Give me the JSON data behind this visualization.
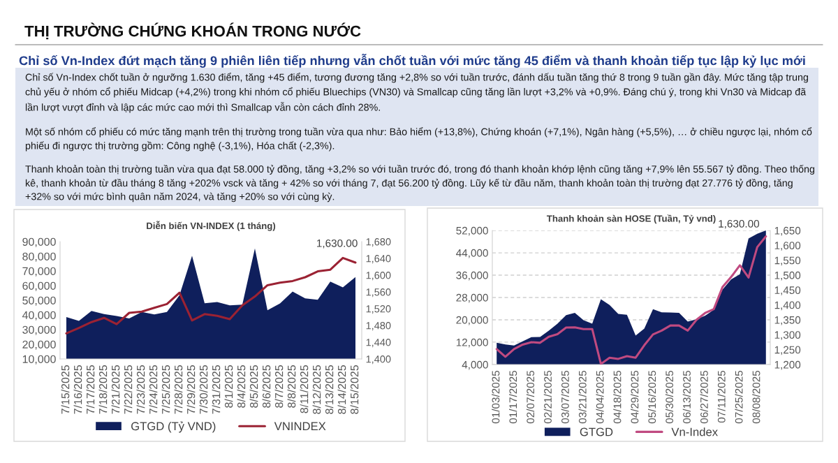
{
  "chart_data": [
    {
      "type": "other",
      "title": "THỊ TRƯỜNG CHỨNG KHOÁN TRONG NƯỚC",
      "subtitle": "Chỉ số Vn-Index đứt mạch tăng 9 phiên liên tiếp nhưng vẫn chốt tuần với mức tăng 45 điểm và thanh khoản tiếp tục lập kỷ lục mới",
      "annotations": [
        "Chỉ số Vn-Index chốt tuần ở ngưỡng 1.630 điểm, tăng +45 điểm, tương đương tăng +2,8% so với tuần trước, đánh dấu tuần tăng thứ 8 trong 9 tuần gần đây. Mức tăng tập trung chủ yếu ở nhóm cổ phiếu Midcap (+4,2%) trong khi nhóm cổ phiếu Bluechips (VN30) và Smallcap cũng tăng lần lượt +3,2% và +0,9%. Đáng chú ý, trong khi Vn30 và Midcap đã lần lượt vượt đỉnh và lập các mức cao mới thì Smallcap vẫn còn cách đỉnh 28%.",
        "Một số nhóm cổ phiếu có mức tăng mạnh trên thị trường trong tuần vừa qua như: Bảo hiểm (+13,8%), Chứng khoán (+7,1%), Ngân hàng (+5,5%), … ở chiều ngược lại, nhóm cổ phiếu đi ngược thị trường gồm: Công nghệ (-3,1%), Hóa chất (-2,3%).",
        "Thanh khoản toàn thị trường tuần vừa qua đạt 58.000 tỷ đồng, tăng +3,2% so với tuần trước đó, trong đó thanh khoản khớp lệnh cũng tăng +7,9% lên 55.567 tỷ đồng. Theo thống kê, thanh khoản từ đầu tháng 8 tăng +202% vsck và tăng + 42% so với tháng 7, đạt 56.200 tỷ đồng. Lũy kế từ đầu năm, thanh khoản toàn thị trường đạt 27.776 tỷ đồng, tăng +32% so với mức bình quân năm 2024, và tăng +20% so với cùng kỳ."
      ]
    },
    {
      "type": "area",
      "title": "Diễn biến VN-INDEX (1 tháng)",
      "categories": [
        "7/15/2025",
        "7/16/2025",
        "7/17/2025",
        "7/18/2025",
        "7/21/2025",
        "7/22/2025",
        "7/23/2025",
        "7/24/2025",
        "7/25/2025",
        "7/28/2025",
        "7/29/2025",
        "7/30/2025",
        "7/31/2025",
        "8/1/2025",
        "8/4/2025",
        "8/5/2025",
        "8/6/2025",
        "8/7/2025",
        "8/8/2025",
        "8/11/2025",
        "8/12/2025",
        "8/13/2025",
        "8/14/2025",
        "8/15/2025"
      ],
      "series": [
        {
          "name": "GTGD (Tỷ VND)",
          "color": "#0f1f5c",
          "values": [
            38600,
            36000,
            42700,
            40600,
            39300,
            37600,
            42000,
            40300,
            42000,
            53400,
            80300,
            48000,
            48800,
            46600,
            47000,
            85400,
            43200,
            47800,
            55900,
            51300,
            50300,
            62700,
            58800,
            65800
          ]
        },
        {
          "name": "VNINDEX",
          "type": "line",
          "axis": "y2",
          "color": "#9b2233",
          "values": [
            1461,
            1474,
            1488,
            1498,
            1483,
            1510,
            1513,
            1522,
            1531,
            1558,
            1492,
            1507,
            1503,
            1495,
            1528,
            1549,
            1576,
            1582,
            1586,
            1595,
            1609,
            1613,
            1641,
            1630
          ],
          "value_labels": [
            null,
            null,
            null,
            null,
            null,
            null,
            null,
            null,
            null,
            null,
            null,
            null,
            null,
            null,
            null,
            null,
            null,
            null,
            null,
            null,
            null,
            null,
            null,
            "1,630.00"
          ]
        }
      ],
      "ylim": [
        10000,
        90000
      ],
      "yticks": [
        {
          "value": 10000,
          "label": "10,000"
        },
        {
          "value": 20000,
          "label": "20,000"
        },
        {
          "value": 30000,
          "label": "30,000"
        },
        {
          "value": 40000,
          "label": "40,000"
        },
        {
          "value": 50000,
          "label": "50,000"
        },
        {
          "value": 60000,
          "label": "60,000"
        },
        {
          "value": 70000,
          "label": "70,000"
        },
        {
          "value": 80000,
          "label": "80,000"
        },
        {
          "value": 90000,
          "label": "90,000"
        }
      ],
      "y2lim": [
        1400,
        1680
      ],
      "y2ticks": [
        {
          "value": 1400,
          "label": "1,400"
        },
        {
          "value": 1440,
          "label": "1,440"
        },
        {
          "value": 1480,
          "label": "1,480"
        },
        {
          "value": 1520,
          "label": "1,520"
        },
        {
          "value": 1560,
          "label": "1,560"
        },
        {
          "value": 1600,
          "label": "1,600"
        },
        {
          "value": 1640,
          "label": "1,640"
        },
        {
          "value": 1680,
          "label": "1,680"
        }
      ],
      "legend": "bottom"
    },
    {
      "type": "area",
      "title": "Thanh khoản sàn HOSE (Tuần, Tỷ vnd)",
      "categories": [
        "01/03/2025",
        null,
        "01/17/2025",
        null,
        "02/07/2025",
        null,
        "02/21/2025",
        null,
        "03/07/2025",
        null,
        "03/21/2025",
        null,
        "04/04/2025",
        null,
        "04/18/2025",
        null,
        "04/29/2025",
        null,
        "05/16/2025",
        null,
        "05/30/2025",
        null,
        "06/13/2025",
        null,
        "06/27/2025",
        null,
        "07/11/2025",
        null,
        "07/25/2025",
        null,
        "08/08/2025",
        null
      ],
      "series": [
        {
          "name": "GTGD",
          "color": "#0f1f5c",
          "values": [
            11800,
            11200,
            10800,
            12300,
            13800,
            13900,
            16100,
            18600,
            21700,
            22500,
            19900,
            18600,
            27400,
            25300,
            22100,
            21800,
            14400,
            16900,
            23800,
            22700,
            22600,
            22500,
            19400,
            20200,
            21500,
            23600,
            30800,
            34500,
            36300,
            49100,
            50800,
            52000
          ]
        },
        {
          "name": "Vn-Index",
          "type": "line",
          "axis": "y2",
          "color": "#c04a80",
          "values": [
            1252,
            1226,
            1252,
            1267,
            1275,
            1273,
            1293,
            1302,
            1324,
            1325,
            1319,
            1319,
            1202,
            1223,
            1219,
            1228,
            1223,
            1265,
            1301,
            1314,
            1331,
            1331,
            1314,
            1350,
            1373,
            1386,
            1460,
            1494,
            1533,
            1492,
            1594,
            1630
          ],
          "value_labels": [
            null,
            null,
            null,
            null,
            null,
            null,
            null,
            null,
            null,
            null,
            null,
            null,
            null,
            null,
            null,
            null,
            null,
            null,
            null,
            null,
            null,
            null,
            null,
            null,
            null,
            null,
            null,
            null,
            null,
            null,
            null,
            "1,630.00"
          ]
        }
      ],
      "ylim": [
        4000,
        52000
      ],
      "yticks": [
        {
          "value": 4000,
          "label": "4,000"
        },
        {
          "value": 12000,
          "label": "12,000"
        },
        {
          "value": 20000,
          "label": "20,000"
        },
        {
          "value": 28000,
          "label": "28,000"
        },
        {
          "value": 36000,
          "label": "36,000"
        },
        {
          "value": 44000,
          "label": "44,000"
        },
        {
          "value": 52000,
          "label": "52,000"
        }
      ],
      "y2lim": [
        1200,
        1650
      ],
      "y2ticks": [
        {
          "value": 1200,
          "label": "1,200"
        },
        {
          "value": 1250,
          "label": "1,250"
        },
        {
          "value": 1300,
          "label": "1,300"
        },
        {
          "value": 1350,
          "label": "1,350"
        },
        {
          "value": 1400,
          "label": "1,400"
        },
        {
          "value": 1450,
          "label": "1,450"
        },
        {
          "value": 1500,
          "label": "1,500"
        },
        {
          "value": 1550,
          "label": "1,550"
        },
        {
          "value": 1600,
          "label": "1,600"
        },
        {
          "value": 1650,
          "label": "1,650"
        }
      ],
      "grid": "y",
      "legend": "bottom"
    }
  ]
}
